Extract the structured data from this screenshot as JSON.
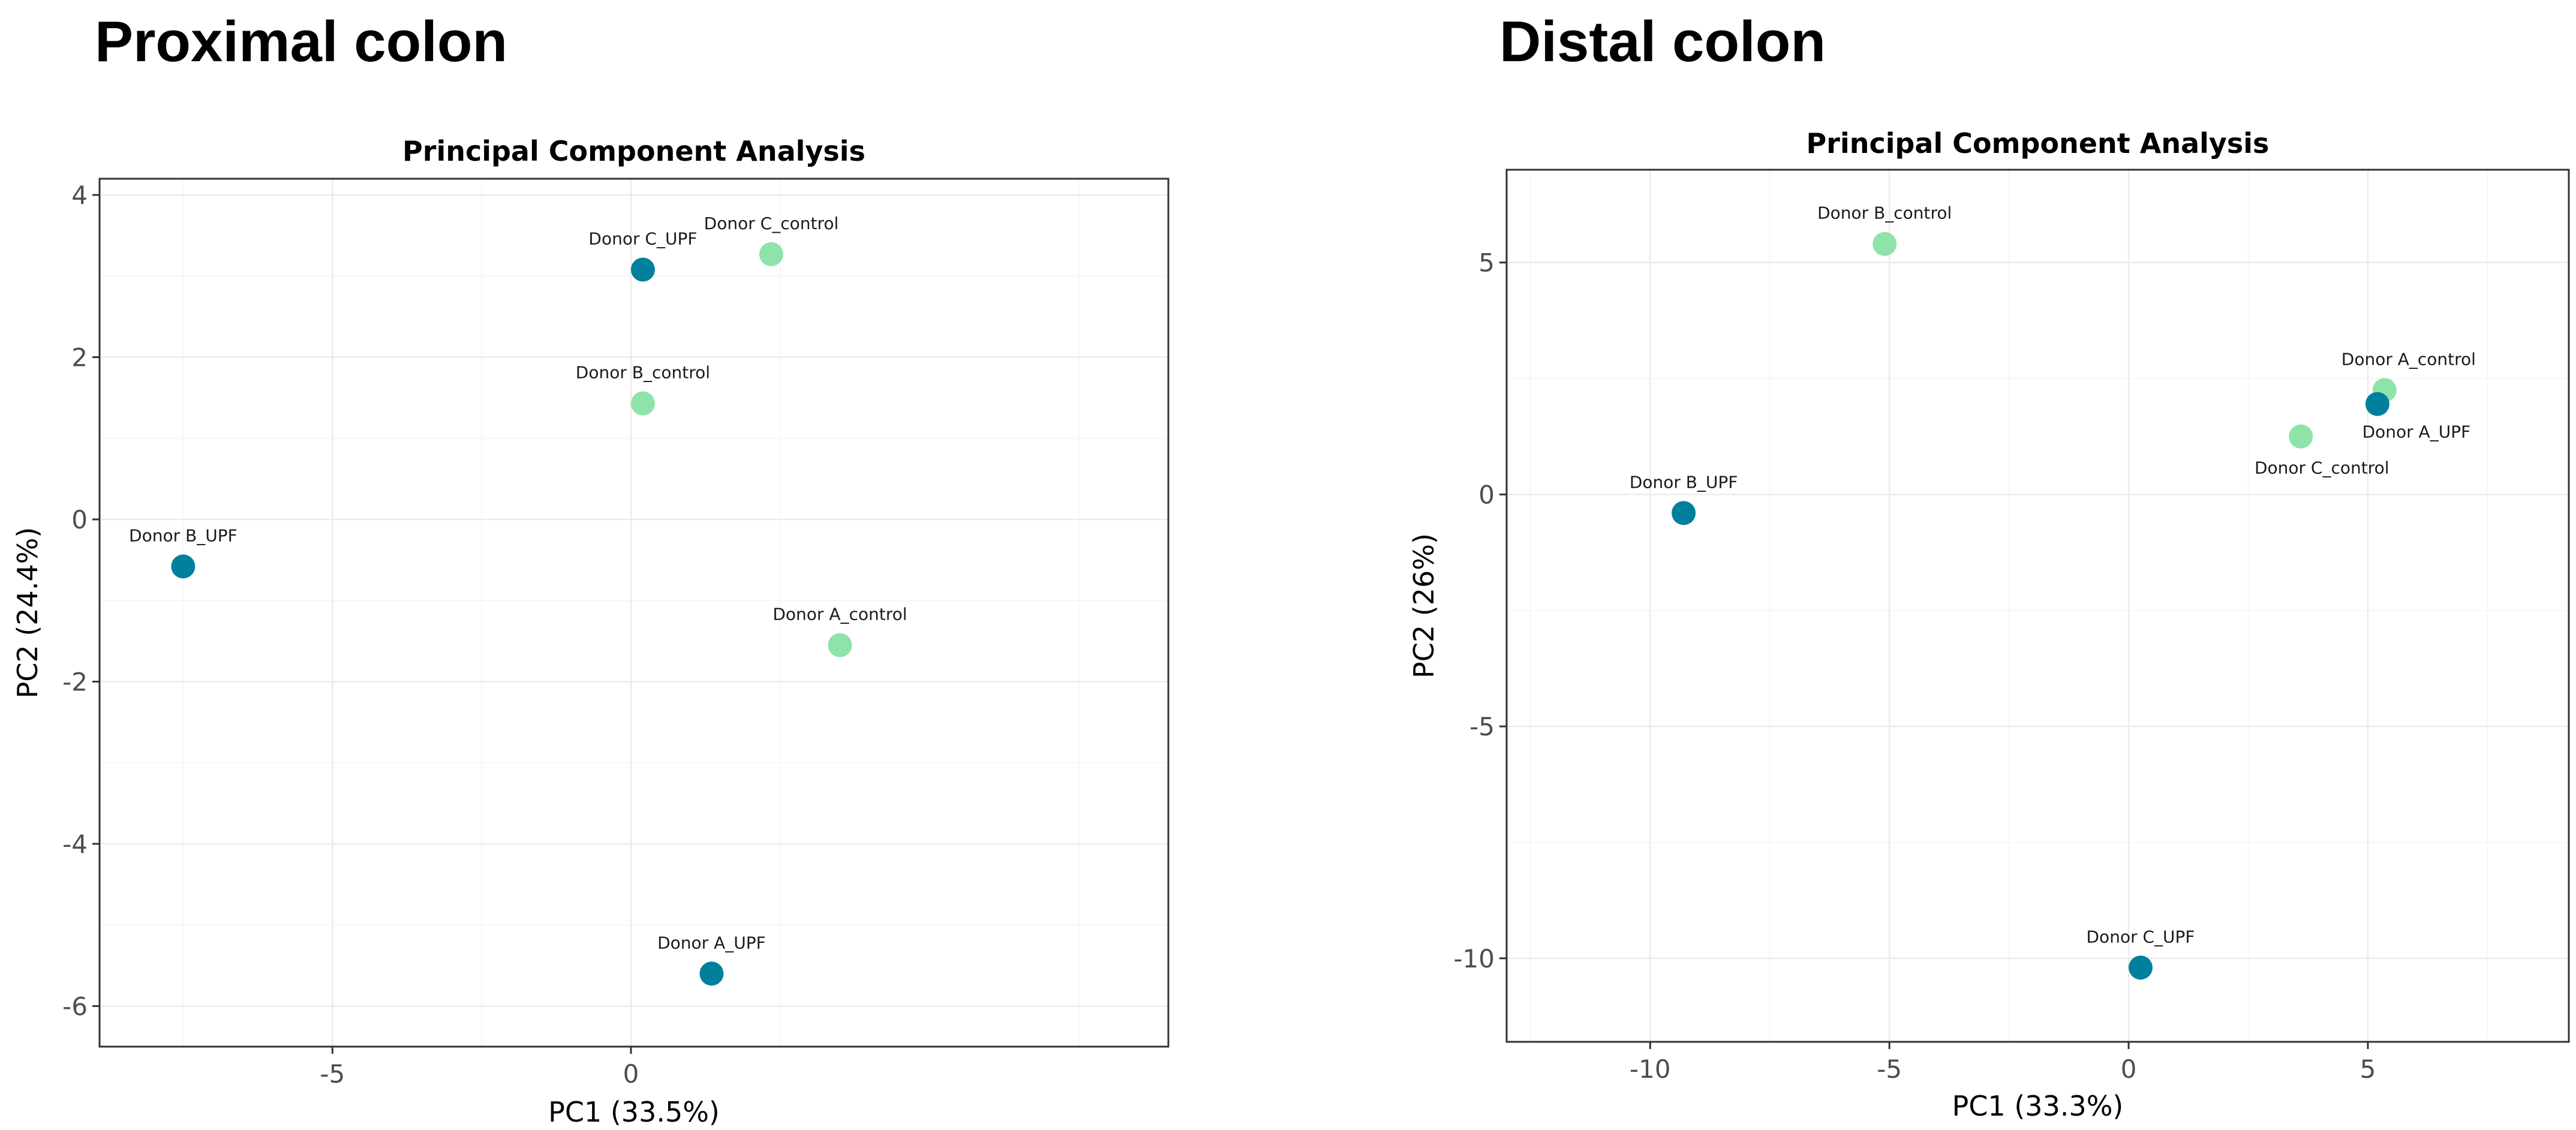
{
  "headings": {
    "left": "Proximal colon",
    "right": "Distal colon"
  },
  "colors": {
    "UPF": "#00809d",
    "control": "#8ee3a8"
  },
  "chart_data": [
    {
      "type": "scatter",
      "title": "Principal Component Analysis",
      "xlabel": "PC1 (33.5%)",
      "ylabel": "PC2 (24.4%)",
      "xlim": [
        -8.9,
        9.0
      ],
      "ylim": [
        -6.5,
        4.2
      ],
      "xticks": [
        -5,
        0
      ],
      "yticks": [
        -6,
        -4,
        -2,
        0,
        2,
        4
      ],
      "points": [
        {
          "label": "Donor C_UPF",
          "group": "UPF",
          "x": 0.2,
          "y": 3.08
        },
        {
          "label": "Donor C_control",
          "group": "control",
          "x": 2.35,
          "y": 3.27
        },
        {
          "label": "Donor B_control",
          "group": "control",
          "x": 0.2,
          "y": 1.43
        },
        {
          "label": "Donor B_UPF",
          "group": "UPF",
          "x": -7.5,
          "y": -0.58
        },
        {
          "label": "Donor A_control",
          "group": "control",
          "x": 3.5,
          "y": -1.55
        },
        {
          "label": "Donor A_UPF",
          "group": "UPF",
          "x": 1.35,
          "y": -5.6
        }
      ]
    },
    {
      "type": "scatter",
      "title": "Principal Component Analysis",
      "xlabel": "PC1 (33.3%)",
      "ylabel": "PC2 (26%)",
      "xlim": [
        -13.0,
        9.2
      ],
      "ylim": [
        -11.8,
        7.0
      ],
      "xticks": [
        -10,
        -5,
        0,
        5
      ],
      "yticks": [
        -10,
        -5,
        0,
        5
      ],
      "points": [
        {
          "label": "Donor B_control",
          "group": "control",
          "x": -5.1,
          "y": 5.4
        },
        {
          "label": "Donor A_control",
          "group": "control",
          "x": 5.35,
          "y": 2.25
        },
        {
          "label": "Donor A_UPF",
          "group": "UPF",
          "x": 5.2,
          "y": 1.95
        },
        {
          "label": "Donor C_control",
          "group": "control",
          "x": 3.6,
          "y": 1.25
        },
        {
          "label": "Donor B_UPF",
          "group": "UPF",
          "x": -9.3,
          "y": -0.4
        },
        {
          "label": "Donor C_UPF",
          "group": "UPF",
          "x": 0.25,
          "y": -10.2
        }
      ]
    }
  ]
}
